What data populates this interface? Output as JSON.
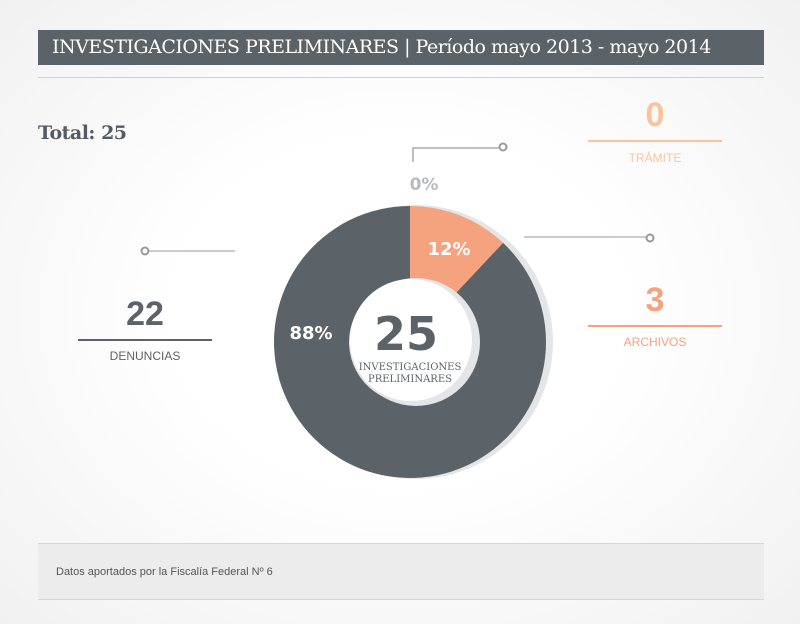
{
  "header": {
    "title": "INVESTIGACIONES PRELIMINARES | Período mayo 2013 - mayo 2014"
  },
  "total_label": "Total: 25",
  "colors": {
    "dark": "#5c6368",
    "accent": "#f5a27f",
    "accent_light": "#fbc39d",
    "muted": "#a9aeb1"
  },
  "chart_data": {
    "type": "pie",
    "center_value": "25",
    "center_label_line1": "INVESTIGACIONES",
    "center_label_line2": "PRELIMINARES",
    "slices": [
      {
        "name": "ARCHIVOS",
        "value": 3,
        "percent_label": "12%",
        "color": "#f5a27f"
      },
      {
        "name": "DENUNCIAS",
        "value": 22,
        "percent_label": "88%",
        "color": "#5c6368"
      },
      {
        "name": "TRÁMITE",
        "value": 0,
        "percent_label": "0%",
        "color": "#fbc39d"
      }
    ]
  },
  "callouts": {
    "tramite": {
      "value": "0",
      "label": "TRÁMITE"
    },
    "archivos": {
      "value": "3",
      "label": "ARCHIVOS"
    },
    "denuncias": {
      "value": "22",
      "label": "DENUNCIAS"
    }
  },
  "footer": {
    "text": "Datos aportados por la Fiscalía Federal Nº 6"
  }
}
